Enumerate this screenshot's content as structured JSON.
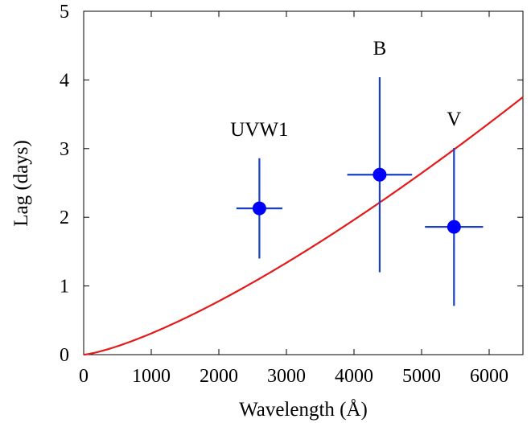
{
  "chart_data": {
    "type": "scatter",
    "title": "",
    "xlabel": "Wavelength (Å)",
    "ylabel": "Lag (days)",
    "xlim": [
      0,
      6500
    ],
    "ylim": [
      0,
      5
    ],
    "xticks": [
      "0",
      "1000",
      "2000",
      "3000",
      "4000",
      "5000",
      "6000"
    ],
    "yticks": [
      "0",
      "1",
      "2",
      "3",
      "4",
      "5"
    ],
    "grid": false,
    "legend": "none",
    "points": [
      {
        "label": "UVW1",
        "x": 2600,
        "y": 2.13,
        "xerr": 340,
        "yerr_low": 0.73,
        "yerr_high": 0.73
      },
      {
        "label": "B",
        "x": 4380,
        "y": 2.62,
        "xerr": 480,
        "yerr_low": 1.42,
        "yerr_high": 1.42
      },
      {
        "label": "V",
        "x": 5480,
        "y": 1.86,
        "xerr": 430,
        "yerr_low": 1.15,
        "yerr_high": 1.15
      }
    ],
    "model": {
      "exponent": 1.3333,
      "y_at_x_max": 3.75
    },
    "colors": {
      "points": "#0000ff",
      "errorbars": "#1a3fc4",
      "model": "#e41a1a",
      "axes": "#000000"
    }
  }
}
